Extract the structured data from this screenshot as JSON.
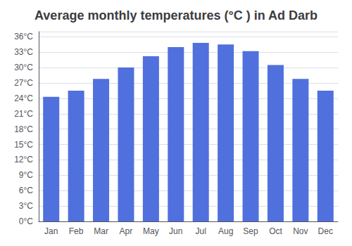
{
  "chart_data": {
    "type": "bar",
    "title": "Average monthly temperatures (°C ) in Ad Darb",
    "categories": [
      "Jan",
      "Feb",
      "Mar",
      "Apr",
      "May",
      "Jun",
      "Jul",
      "Aug",
      "Sep",
      "Oct",
      "Nov",
      "Dec"
    ],
    "values": [
      24.3,
      25.5,
      27.8,
      30.0,
      32.2,
      34.0,
      34.8,
      34.5,
      33.2,
      30.5,
      27.8,
      25.5
    ],
    "ylim": [
      0,
      37
    ],
    "yticks": [
      {
        "value": 0,
        "label": "0°C"
      },
      {
        "value": 3,
        "label": "3°C"
      },
      {
        "value": 6,
        "label": "6°C"
      },
      {
        "value": 9,
        "label": "9°C"
      },
      {
        "value": 12,
        "label": "12°C"
      },
      {
        "value": 15,
        "label": "15°C"
      },
      {
        "value": 18,
        "label": "18°C"
      },
      {
        "value": 21,
        "label": "21°C"
      },
      {
        "value": 24,
        "label": "24°C"
      },
      {
        "value": 27,
        "label": "27°C"
      },
      {
        "value": 30,
        "label": "30°C"
      },
      {
        "value": 33,
        "label": "33°C"
      },
      {
        "value": 36,
        "label": "36°C"
      }
    ],
    "grid": true
  }
}
